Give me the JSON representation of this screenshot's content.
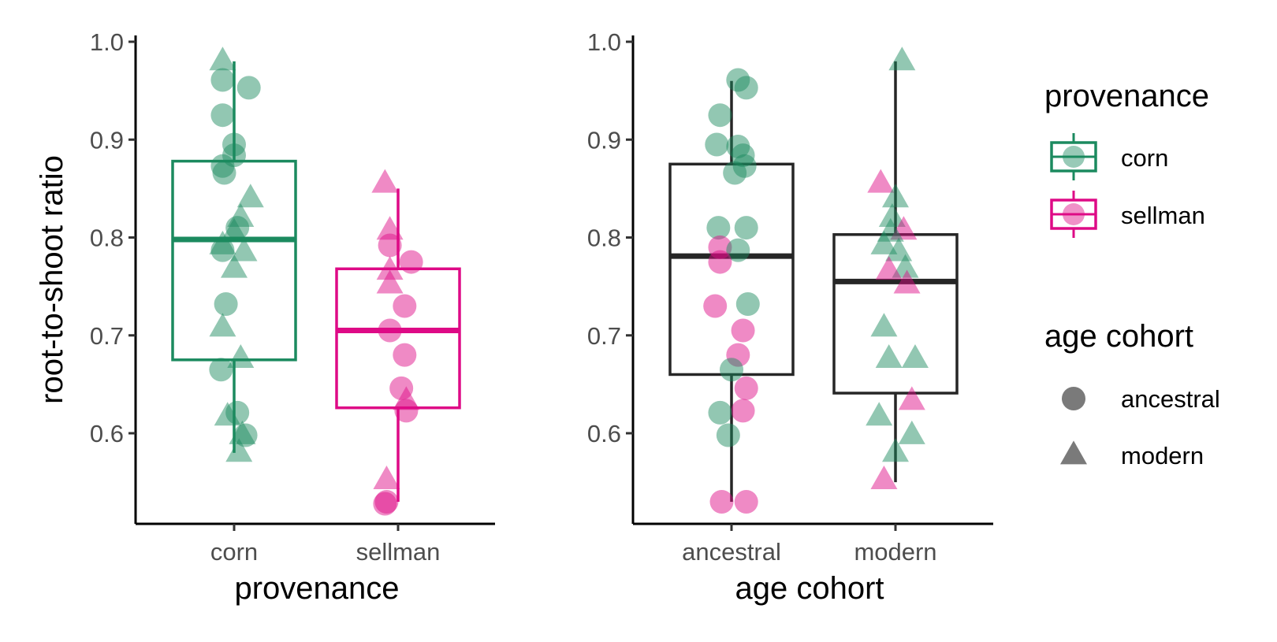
{
  "colors": {
    "corn": "#1b8a5f",
    "sellman": "#de0a86",
    "neutral": "#262626"
  },
  "legend": {
    "provenance": {
      "title": "provenance",
      "items": [
        {
          "label": "corn",
          "color": "#1b8a5f"
        },
        {
          "label": "sellman",
          "color": "#de0a86"
        }
      ]
    },
    "age_cohort": {
      "title": "age cohort",
      "items": [
        {
          "label": "ancestral",
          "shape": "circle"
        },
        {
          "label": "modern",
          "shape": "triangle"
        }
      ]
    }
  },
  "chart_data": [
    {
      "type": "boxplot",
      "xlabel": "provenance",
      "ylabel": "root-to-shoot ratio",
      "categories": [
        "corn",
        "sellman"
      ],
      "y_ticks": [
        "0.6",
        "0.7",
        "0.8",
        "0.9",
        "1.0"
      ],
      "y_tick_values": [
        0.6,
        0.7,
        0.8,
        0.9,
        1.0
      ],
      "ylim": [
        0.505,
        1.0
      ],
      "boxes": [
        {
          "category": "corn",
          "color": "#1b8a5f",
          "min": 0.58,
          "q1": 0.675,
          "median": 0.798,
          "q3": 0.878,
          "max": 0.98
        },
        {
          "category": "sellman",
          "color": "#de0a86",
          "min": 0.53,
          "q1": 0.626,
          "median": 0.705,
          "q3": 0.768,
          "max": 0.85
        }
      ],
      "points": [
        {
          "x": "corn",
          "xj": -0.07,
          "y": 0.98,
          "prov": "corn",
          "age": "modern"
        },
        {
          "x": "corn",
          "xj": -0.07,
          "y": 0.961,
          "prov": "corn",
          "age": "ancestral"
        },
        {
          "x": "corn",
          "xj": 0.09,
          "y": 0.953,
          "prov": "corn",
          "age": "ancestral"
        },
        {
          "x": "corn",
          "xj": -0.07,
          "y": 0.925,
          "prov": "corn",
          "age": "ancestral"
        },
        {
          "x": "corn",
          "xj": 0.0,
          "y": 0.895,
          "prov": "corn",
          "age": "ancestral"
        },
        {
          "x": "corn",
          "xj": 0.0,
          "y": 0.884,
          "prov": "corn",
          "age": "ancestral"
        },
        {
          "x": "corn",
          "xj": -0.07,
          "y": 0.873,
          "prov": "corn",
          "age": "ancestral"
        },
        {
          "x": "corn",
          "xj": -0.06,
          "y": 0.866,
          "prov": "corn",
          "age": "ancestral"
        },
        {
          "x": "corn",
          "xj": 0.1,
          "y": 0.84,
          "prov": "corn",
          "age": "modern"
        },
        {
          "x": "corn",
          "xj": 0.04,
          "y": 0.82,
          "prov": "corn",
          "age": "modern"
        },
        {
          "x": "corn",
          "xj": 0.02,
          "y": 0.81,
          "prov": "corn",
          "age": "ancestral"
        },
        {
          "x": "corn",
          "xj": 0.0,
          "y": 0.805,
          "prov": "corn",
          "age": "modern"
        },
        {
          "x": "corn",
          "xj": -0.07,
          "y": 0.792,
          "prov": "corn",
          "age": "modern"
        },
        {
          "x": "corn",
          "xj": -0.07,
          "y": 0.787,
          "prov": "corn",
          "age": "ancestral"
        },
        {
          "x": "corn",
          "xj": 0.06,
          "y": 0.785,
          "prov": "corn",
          "age": "modern"
        },
        {
          "x": "corn",
          "xj": 0.0,
          "y": 0.768,
          "prov": "corn",
          "age": "modern"
        },
        {
          "x": "corn",
          "xj": -0.05,
          "y": 0.732,
          "prov": "corn",
          "age": "ancestral"
        },
        {
          "x": "corn",
          "xj": -0.07,
          "y": 0.708,
          "prov": "corn",
          "age": "modern"
        },
        {
          "x": "corn",
          "xj": 0.04,
          "y": 0.676,
          "prov": "corn",
          "age": "modern"
        },
        {
          "x": "corn",
          "xj": -0.08,
          "y": 0.665,
          "prov": "corn",
          "age": "ancestral"
        },
        {
          "x": "corn",
          "xj": 0.02,
          "y": 0.621,
          "prov": "corn",
          "age": "ancestral"
        },
        {
          "x": "corn",
          "xj": -0.04,
          "y": 0.617,
          "prov": "corn",
          "age": "modern"
        },
        {
          "x": "corn",
          "xj": 0.07,
          "y": 0.598,
          "prov": "corn",
          "age": "ancestral"
        },
        {
          "x": "corn",
          "xj": 0.05,
          "y": 0.598,
          "prov": "corn",
          "age": "modern"
        },
        {
          "x": "corn",
          "xj": 0.03,
          "y": 0.58,
          "prov": "corn",
          "age": "modern"
        },
        {
          "x": "sellman",
          "xj": -0.08,
          "y": 0.855,
          "prov": "sellman",
          "age": "modern"
        },
        {
          "x": "sellman",
          "xj": -0.05,
          "y": 0.807,
          "prov": "sellman",
          "age": "modern"
        },
        {
          "x": "sellman",
          "xj": -0.05,
          "y": 0.792,
          "prov": "sellman",
          "age": "ancestral"
        },
        {
          "x": "sellman",
          "xj": 0.08,
          "y": 0.775,
          "prov": "sellman",
          "age": "ancestral"
        },
        {
          "x": "sellman",
          "xj": -0.05,
          "y": 0.766,
          "prov": "sellman",
          "age": "modern"
        },
        {
          "x": "sellman",
          "xj": -0.05,
          "y": 0.752,
          "prov": "sellman",
          "age": "modern"
        },
        {
          "x": "sellman",
          "xj": 0.04,
          "y": 0.73,
          "prov": "sellman",
          "age": "ancestral"
        },
        {
          "x": "sellman",
          "xj": -0.05,
          "y": 0.705,
          "prov": "sellman",
          "age": "ancestral"
        },
        {
          "x": "sellman",
          "xj": 0.04,
          "y": 0.68,
          "prov": "sellman",
          "age": "ancestral"
        },
        {
          "x": "sellman",
          "xj": 0.02,
          "y": 0.646,
          "prov": "sellman",
          "age": "ancestral"
        },
        {
          "x": "sellman",
          "xj": 0.05,
          "y": 0.633,
          "prov": "sellman",
          "age": "modern"
        },
        {
          "x": "sellman",
          "xj": 0.05,
          "y": 0.623,
          "prov": "sellman",
          "age": "ancestral"
        },
        {
          "x": "sellman",
          "xj": -0.07,
          "y": 0.552,
          "prov": "sellman",
          "age": "modern"
        },
        {
          "x": "sellman",
          "xj": -0.07,
          "y": 0.53,
          "prov": "sellman",
          "age": "ancestral"
        },
        {
          "x": "sellman",
          "xj": -0.08,
          "y": 0.528,
          "prov": "sellman",
          "age": "ancestral"
        }
      ]
    },
    {
      "type": "boxplot",
      "xlabel": "age cohort",
      "ylabel": "",
      "categories": [
        "ancestral",
        "modern"
      ],
      "y_ticks": [
        "0.6",
        "0.7",
        "0.8",
        "0.9",
        "1.0"
      ],
      "y_tick_values": [
        0.6,
        0.7,
        0.8,
        0.9,
        1.0
      ],
      "ylim": [
        0.505,
        1.0
      ],
      "boxes": [
        {
          "category": "ancestral",
          "color": "#262626",
          "min": 0.53,
          "q1": 0.66,
          "median": 0.781,
          "q3": 0.875,
          "max": 0.96
        },
        {
          "category": "modern",
          "color": "#262626",
          "min": 0.55,
          "q1": 0.641,
          "median": 0.755,
          "q3": 0.803,
          "max": 0.98
        }
      ],
      "points": [
        {
          "x": "ancestral",
          "xj": 0.04,
          "y": 0.961,
          "prov": "corn",
          "age": "ancestral"
        },
        {
          "x": "ancestral",
          "xj": 0.09,
          "y": 0.953,
          "prov": "corn",
          "age": "ancestral"
        },
        {
          "x": "ancestral",
          "xj": -0.07,
          "y": 0.925,
          "prov": "corn",
          "age": "ancestral"
        },
        {
          "x": "ancestral",
          "xj": -0.09,
          "y": 0.895,
          "prov": "corn",
          "age": "ancestral"
        },
        {
          "x": "ancestral",
          "xj": 0.04,
          "y": 0.893,
          "prov": "corn",
          "age": "ancestral"
        },
        {
          "x": "ancestral",
          "xj": 0.07,
          "y": 0.884,
          "prov": "corn",
          "age": "ancestral"
        },
        {
          "x": "ancestral",
          "xj": 0.08,
          "y": 0.873,
          "prov": "corn",
          "age": "ancestral"
        },
        {
          "x": "ancestral",
          "xj": 0.02,
          "y": 0.866,
          "prov": "corn",
          "age": "ancestral"
        },
        {
          "x": "ancestral",
          "xj": -0.08,
          "y": 0.81,
          "prov": "corn",
          "age": "ancestral"
        },
        {
          "x": "ancestral",
          "xj": 0.09,
          "y": 0.81,
          "prov": "corn",
          "age": "ancestral"
        },
        {
          "x": "ancestral",
          "xj": -0.07,
          "y": 0.79,
          "prov": "sellman",
          "age": "ancestral"
        },
        {
          "x": "ancestral",
          "xj": 0.04,
          "y": 0.787,
          "prov": "corn",
          "age": "ancestral"
        },
        {
          "x": "ancestral",
          "xj": -0.07,
          "y": 0.775,
          "prov": "sellman",
          "age": "ancestral"
        },
        {
          "x": "ancestral",
          "xj": 0.1,
          "y": 0.732,
          "prov": "corn",
          "age": "ancestral"
        },
        {
          "x": "ancestral",
          "xj": -0.1,
          "y": 0.73,
          "prov": "sellman",
          "age": "ancestral"
        },
        {
          "x": "ancestral",
          "xj": 0.07,
          "y": 0.705,
          "prov": "sellman",
          "age": "ancestral"
        },
        {
          "x": "ancestral",
          "xj": 0.04,
          "y": 0.68,
          "prov": "sellman",
          "age": "ancestral"
        },
        {
          "x": "ancestral",
          "xj": 0.0,
          "y": 0.665,
          "prov": "corn",
          "age": "ancestral"
        },
        {
          "x": "ancestral",
          "xj": 0.09,
          "y": 0.646,
          "prov": "sellman",
          "age": "ancestral"
        },
        {
          "x": "ancestral",
          "xj": 0.07,
          "y": 0.623,
          "prov": "sellman",
          "age": "ancestral"
        },
        {
          "x": "ancestral",
          "xj": -0.07,
          "y": 0.621,
          "prov": "corn",
          "age": "ancestral"
        },
        {
          "x": "ancestral",
          "xj": -0.02,
          "y": 0.598,
          "prov": "corn",
          "age": "ancestral"
        },
        {
          "x": "ancestral",
          "xj": -0.06,
          "y": 0.53,
          "prov": "sellman",
          "age": "ancestral"
        },
        {
          "x": "ancestral",
          "xj": 0.09,
          "y": 0.53,
          "prov": "sellman",
          "age": "ancestral"
        },
        {
          "x": "modern",
          "xj": 0.04,
          "y": 0.98,
          "prov": "corn",
          "age": "modern"
        },
        {
          "x": "modern",
          "xj": -0.09,
          "y": 0.855,
          "prov": "sellman",
          "age": "modern"
        },
        {
          "x": "modern",
          "xj": 0.0,
          "y": 0.84,
          "prov": "corn",
          "age": "modern"
        },
        {
          "x": "modern",
          "xj": -0.02,
          "y": 0.82,
          "prov": "corn",
          "age": "modern"
        },
        {
          "x": "modern",
          "xj": 0.05,
          "y": 0.807,
          "prov": "sellman",
          "age": "modern"
        },
        {
          "x": "modern",
          "xj": -0.03,
          "y": 0.805,
          "prov": "corn",
          "age": "modern"
        },
        {
          "x": "modern",
          "xj": -0.07,
          "y": 0.792,
          "prov": "corn",
          "age": "modern"
        },
        {
          "x": "modern",
          "xj": 0.02,
          "y": 0.785,
          "prov": "corn",
          "age": "modern"
        },
        {
          "x": "modern",
          "xj": 0.06,
          "y": 0.768,
          "prov": "corn",
          "age": "modern"
        },
        {
          "x": "modern",
          "xj": -0.04,
          "y": 0.766,
          "prov": "sellman",
          "age": "modern"
        },
        {
          "x": "modern",
          "xj": 0.07,
          "y": 0.752,
          "prov": "sellman",
          "age": "modern"
        },
        {
          "x": "modern",
          "xj": -0.07,
          "y": 0.708,
          "prov": "corn",
          "age": "modern"
        },
        {
          "x": "modern",
          "xj": -0.04,
          "y": 0.676,
          "prov": "corn",
          "age": "modern"
        },
        {
          "x": "modern",
          "xj": 0.12,
          "y": 0.676,
          "prov": "corn",
          "age": "modern"
        },
        {
          "x": "modern",
          "xj": 0.1,
          "y": 0.633,
          "prov": "sellman",
          "age": "modern"
        },
        {
          "x": "modern",
          "xj": -0.1,
          "y": 0.617,
          "prov": "corn",
          "age": "modern"
        },
        {
          "x": "modern",
          "xj": 0.1,
          "y": 0.598,
          "prov": "corn",
          "age": "modern"
        },
        {
          "x": "modern",
          "xj": 0.0,
          "y": 0.58,
          "prov": "corn",
          "age": "modern"
        },
        {
          "x": "modern",
          "xj": -0.07,
          "y": 0.552,
          "prov": "sellman",
          "age": "modern"
        }
      ]
    }
  ]
}
